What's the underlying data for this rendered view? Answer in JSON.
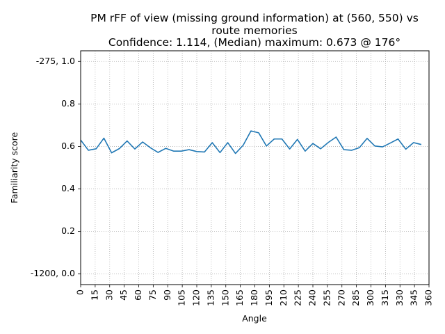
{
  "chart_data": {
    "type": "line",
    "title_lines": [
      "PM rFF of view (missing ground information) at (560, 550) vs",
      "route memories",
      "Confidence: 1.114, (Median) maximum: 0.673 @ 176°"
    ],
    "xlabel": "Angle",
    "ylabel": "Familiarity score",
    "xlim": [
      0,
      360
    ],
    "ylim": [
      -0.05,
      1.05
    ],
    "grid": true,
    "line_color": "#1f77b4",
    "x_ticks": [
      0,
      15,
      30,
      45,
      60,
      75,
      90,
      105,
      120,
      135,
      150,
      165,
      180,
      195,
      210,
      225,
      240,
      255,
      270,
      285,
      300,
      315,
      330,
      345,
      360
    ],
    "x_tick_labels": [
      "0",
      "15",
      "30",
      "45",
      "60",
      "75",
      "90",
      "105",
      "120",
      "135",
      "150",
      "165",
      "180",
      "195",
      "210",
      "225",
      "240",
      "255",
      "270",
      "285",
      "300",
      "315",
      "330",
      "345",
      "360"
    ],
    "y_ticks": [
      0.0,
      0.2,
      0.4,
      0.6,
      0.8,
      1.0
    ],
    "y_tick_labels": [
      "-1200, 0.0",
      "0.2",
      "0.4",
      "0.6",
      "0.8",
      "-275, 1.0"
    ],
    "series": [
      {
        "x": [
          0,
          8,
          16,
          24,
          32,
          40,
          48,
          56,
          64,
          72,
          80,
          88,
          96,
          104,
          112,
          120,
          128,
          136,
          144,
          152,
          160,
          168,
          176,
          184,
          192,
          200,
          208,
          216,
          224,
          232,
          240,
          248,
          256,
          264,
          272,
          280,
          288,
          296,
          304,
          312,
          320,
          328,
          336,
          344,
          352
        ],
        "y": [
          0.63,
          0.582,
          0.589,
          0.639,
          0.57,
          0.59,
          0.626,
          0.588,
          0.621,
          0.594,
          0.572,
          0.591,
          0.578,
          0.578,
          0.585,
          0.576,
          0.574,
          0.618,
          0.571,
          0.618,
          0.567,
          0.606,
          0.673,
          0.664,
          0.602,
          0.635,
          0.635,
          0.588,
          0.633,
          0.578,
          0.614,
          0.589,
          0.619,
          0.644,
          0.585,
          0.582,
          0.594,
          0.638,
          0.602,
          0.598,
          0.616,
          0.635,
          0.587,
          0.618,
          0.609
        ]
      }
    ]
  }
}
